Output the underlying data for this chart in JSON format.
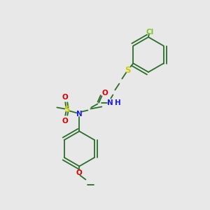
{
  "bg_color": "#e8e8e8",
  "bond_color": "#2a6e2a",
  "n_color": "#1a1aff",
  "o_color": "#dd0000",
  "s_color": "#cccc00",
  "cl_color": "#7dc520",
  "lw": 1.3,
  "fs": 7.5,
  "ring_r": 25,
  "inner_off": 4.0,
  "xlim": [
    0,
    300
  ],
  "ylim": [
    0,
    300
  ]
}
